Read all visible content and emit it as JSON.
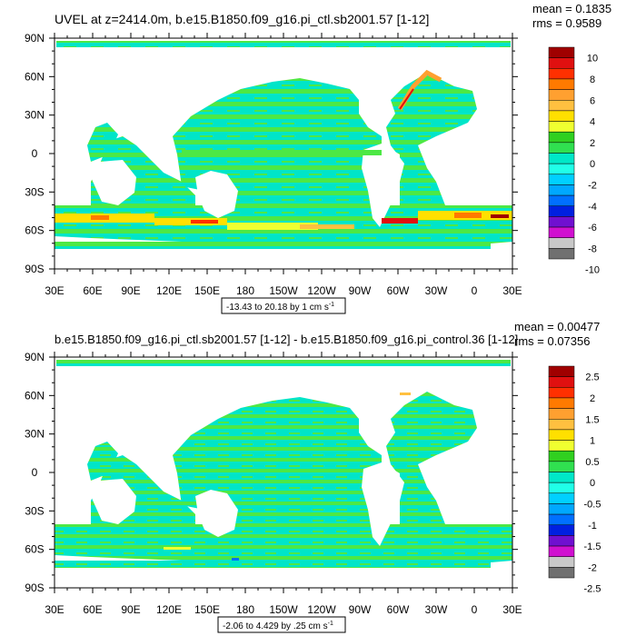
{
  "colors": {
    "ocean_land_mask": "#ffffff",
    "cyan": "#00e5c8",
    "green": "#4de845",
    "frame": "#000000"
  },
  "chart_data": [
    {
      "type": "heatmap",
      "title": "UVEL at z=2414.0m, b.e15.B1850.f09_g16.pi_ctl.sb2001.57 [1-12]",
      "stats": {
        "mean": "mean = 0.1835",
        "rms": "rms = 0.9589"
      },
      "range_label": "-13.43 to 20.18 by 1 cm s",
      "range_sup": "-1",
      "x_ticks": [
        "30E",
        "60E",
        "90E",
        "120E",
        "150E",
        "180",
        "150W",
        "120W",
        "90W",
        "60W",
        "30W",
        "0",
        "30E"
      ],
      "y_ticks": [
        "90N",
        "60N",
        "30N",
        "0",
        "30S",
        "60S",
        "90S"
      ],
      "colorbar": {
        "labels": [
          "10",
          "8",
          "6",
          "4",
          "2",
          "0",
          "-2",
          "-4",
          "-6",
          "-8",
          "-10"
        ],
        "colors": [
          "#a00000",
          "#e01010",
          "#ff3000",
          "#ff7a00",
          "#ffa030",
          "#ffc040",
          "#ffe000",
          "#f0ff30",
          "#30d020",
          "#30e050",
          "#00e8c8",
          "#20ffe8",
          "#00d0ff",
          "#00a8ff",
          "#0070ff",
          "#0020e0",
          "#7010d0",
          "#d010d0",
          "#c8c8c8",
          "#707070"
        ]
      }
    },
    {
      "type": "heatmap",
      "title": "b.e15.B1850.f09_g16.pi_ctl.sb2001.57 [1-12] - b.e15.B1850.f09_g16.pi_control.36 [1-12]",
      "stats": {
        "mean": "mean = 0.00477",
        "rms": "rms = 0.07356"
      },
      "range_label": "-2.06 to 4.429 by .25 cm s",
      "range_sup": "-1",
      "x_ticks": [
        "30E",
        "60E",
        "90E",
        "120E",
        "150E",
        "180",
        "150W",
        "120W",
        "90W",
        "60W",
        "30W",
        "0",
        "30E"
      ],
      "y_ticks": [
        "90N",
        "60N",
        "30N",
        "0",
        "30S",
        "60S",
        "90S"
      ],
      "colorbar": {
        "labels": [
          "2.5",
          "2",
          "1.5",
          "1",
          "0.5",
          "0",
          "-0.5",
          "-1",
          "-1.5",
          "-2",
          "-2.5"
        ],
        "colors": [
          "#a00000",
          "#e01010",
          "#ff3000",
          "#ff7a00",
          "#ffa030",
          "#ffc040",
          "#ffe000",
          "#f0ff30",
          "#30d020",
          "#30e050",
          "#00e8c8",
          "#20ffe8",
          "#00d0ff",
          "#00a8ff",
          "#0070ff",
          "#0020e0",
          "#7010d0",
          "#d010d0",
          "#c8c8c8",
          "#707070"
        ]
      }
    }
  ]
}
